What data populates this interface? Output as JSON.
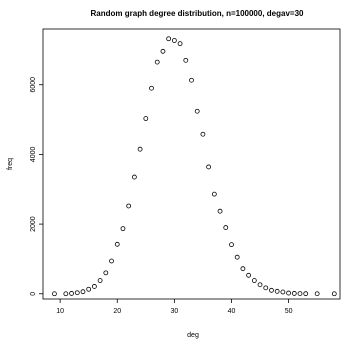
{
  "chart_data": {
    "type": "scatter",
    "title": "Random graph degree distribution, n=100000, degav=30",
    "xlabel": "deg",
    "ylabel": "freq",
    "xlim": [
      7,
      59
    ],
    "ylim": [
      -150,
      7600
    ],
    "xticks": [
      10,
      20,
      30,
      40,
      50
    ],
    "yticks": [
      0,
      2000,
      4000,
      6000
    ],
    "marker": "open-circle",
    "grid": false,
    "legend": "none",
    "x": [
      9,
      11,
      12,
      13,
      14,
      15,
      16,
      17,
      18,
      19,
      20,
      21,
      22,
      23,
      24,
      25,
      26,
      27,
      28,
      29,
      30,
      31,
      32,
      33,
      34,
      35,
      36,
      37,
      38,
      39,
      40,
      41,
      42,
      43,
      44,
      45,
      46,
      47,
      48,
      49,
      50,
      51,
      52,
      53,
      55,
      58
    ],
    "y": [
      0,
      0,
      10,
      30,
      60,
      130,
      210,
      380,
      600,
      940,
      1420,
      1870,
      2520,
      3350,
      4150,
      5030,
      5900,
      6650,
      6960,
      7320,
      7270,
      7180,
      6700,
      6130,
      5240,
      4580,
      3640,
      2860,
      2370,
      1900,
      1410,
      1050,
      720,
      530,
      380,
      260,
      170,
      100,
      70,
      50,
      20,
      10,
      5,
      3,
      1,
      0
    ]
  }
}
